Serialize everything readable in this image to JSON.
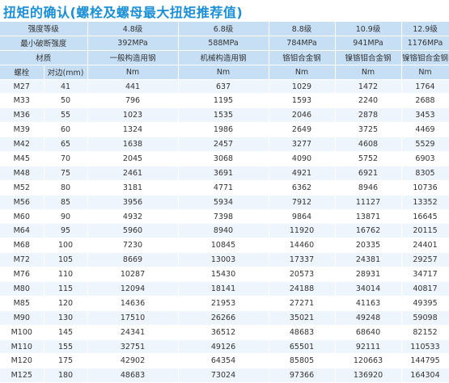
{
  "title": "扭矩的确认(螺栓及螺母最大扭矩推荐值)",
  "header": {
    "strength_grade_label": "强度等级",
    "grades": [
      "4.8级",
      "6.8级",
      "8.8级",
      "10.9级",
      "12.9级"
    ],
    "min_break_label": "最小破断强度",
    "min_break": [
      "392MPa",
      "588MPa",
      "784MPa",
      "941MPa",
      "1176MPa"
    ],
    "material_label": "材质",
    "materials": [
      "一般构造用钢",
      "机械构造用钢",
      "铬钼合金钢",
      "镍铬钼合金钢",
      "镍铬钼合金钢"
    ],
    "bolt_label": "螺栓",
    "side_label": "对边(mm)",
    "units": [
      "Nm",
      "Nm",
      "Nm",
      "Nm",
      "Nm"
    ]
  },
  "rows": [
    {
      "bolt": "M27",
      "side": "41",
      "v": [
        "441",
        "637",
        "1029",
        "1472",
        "1764"
      ]
    },
    {
      "bolt": "M33",
      "side": "50",
      "v": [
        "796",
        "1195",
        "1593",
        "2240",
        "2688"
      ]
    },
    {
      "bolt": "M36",
      "side": "55",
      "v": [
        "1023",
        "1535",
        "2046",
        "2878",
        "3453"
      ]
    },
    {
      "bolt": "M39",
      "side": "60",
      "v": [
        "1324",
        "1986",
        "2649",
        "3725",
        "4469"
      ]
    },
    {
      "bolt": "M42",
      "side": "65",
      "v": [
        "1638",
        "2457",
        "3277",
        "4608",
        "5529"
      ]
    },
    {
      "bolt": "M45",
      "side": "70",
      "v": [
        "2045",
        "3068",
        "4090",
        "5752",
        "6903"
      ]
    },
    {
      "bolt": "M48",
      "side": "75",
      "v": [
        "2461",
        "3691",
        "4921",
        "6921",
        "8305"
      ]
    },
    {
      "bolt": "M52",
      "side": "80",
      "v": [
        "3181",
        "4771",
        "6362",
        "8946",
        "10736"
      ]
    },
    {
      "bolt": "M56",
      "side": "85",
      "v": [
        "3956",
        "5934",
        "7912",
        "11127",
        "13352"
      ]
    },
    {
      "bolt": "M60",
      "side": "90",
      "v": [
        "4932",
        "7398",
        "9864",
        "13871",
        "16645"
      ]
    },
    {
      "bolt": "M64",
      "side": "95",
      "v": [
        "5960",
        "8940",
        "11920",
        "16762",
        "20115"
      ]
    },
    {
      "bolt": "M68",
      "side": "100",
      "v": [
        "7230",
        "10845",
        "14460",
        "20335",
        "24401"
      ]
    },
    {
      "bolt": "M72",
      "side": "105",
      "v": [
        "8669",
        "13003",
        "17337",
        "24381",
        "29257"
      ]
    },
    {
      "bolt": "M76",
      "side": "110",
      "v": [
        "10287",
        "15430",
        "20573",
        "28931",
        "34717"
      ]
    },
    {
      "bolt": "M80",
      "side": "115",
      "v": [
        "12094",
        "18141",
        "24188",
        "34014",
        "40817"
      ]
    },
    {
      "bolt": "M85",
      "side": "120",
      "v": [
        "14636",
        "21953",
        "27271",
        "41163",
        "49395"
      ]
    },
    {
      "bolt": "M90",
      "side": "130",
      "v": [
        "17510",
        "26266",
        "35021",
        "49248",
        "59098"
      ]
    },
    {
      "bolt": "M100",
      "side": "145",
      "v": [
        "24341",
        "36512",
        "48683",
        "68640",
        "82152"
      ]
    },
    {
      "bolt": "M110",
      "side": "155",
      "v": [
        "32751",
        "49126",
        "65501",
        "92111",
        "110533"
      ]
    },
    {
      "bolt": "M120",
      "side": "175",
      "v": [
        "42902",
        "64354",
        "85805",
        "120663",
        "144795"
      ]
    },
    {
      "bolt": "M125",
      "side": "180",
      "v": [
        "48683",
        "73024",
        "97366",
        "136920",
        "164304"
      ]
    }
  ]
}
